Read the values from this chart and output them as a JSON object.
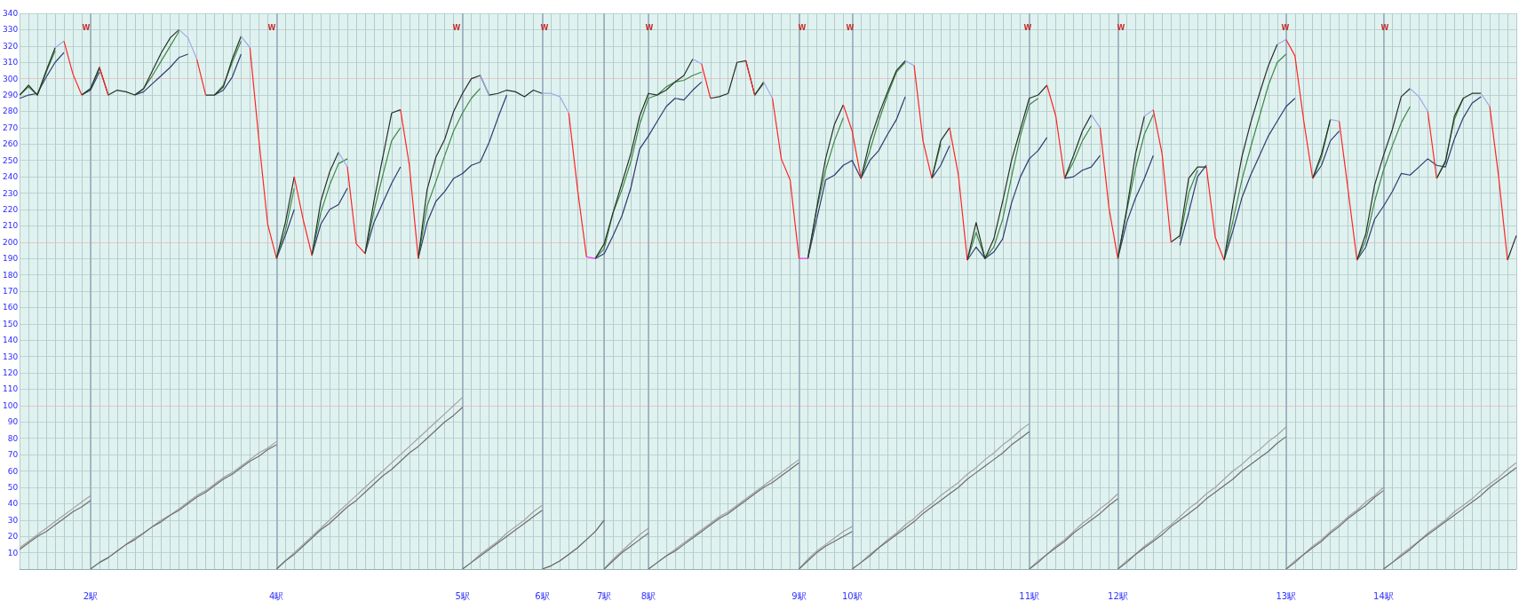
{
  "chart_data": {
    "type": "line",
    "marker": "none",
    "grid": true,
    "ylim": [
      0,
      340
    ],
    "yticks": [
      {
        "value": 0,
        "label": null
      },
      10,
      20,
      30,
      40,
      50,
      60,
      70,
      80,
      90,
      100,
      110,
      120,
      130,
      140,
      150,
      160,
      170,
      180,
      190,
      200,
      210,
      220,
      230,
      240,
      250,
      260,
      270,
      280,
      290,
      300,
      310,
      320,
      330,
      340
    ],
    "categories": [
      null,
      null,
      null,
      null,
      null,
      null,
      null,
      null,
      "2駅",
      null,
      null,
      null,
      null,
      null,
      null,
      null,
      null,
      null,
      null,
      null,
      null,
      null,
      null,
      null,
      null,
      null,
      null,
      null,
      null,
      "4駅",
      null,
      null,
      null,
      null,
      null,
      null,
      null,
      null,
      null,
      null,
      null,
      null,
      null,
      null,
      null,
      null,
      null,
      null,
      null,
      null,
      "5駅",
      null,
      null,
      null,
      null,
      null,
      null,
      null,
      null,
      "6駅",
      null,
      null,
      null,
      null,
      null,
      null,
      "7駅",
      null,
      null,
      null,
      null,
      "8駅",
      null,
      null,
      null,
      null,
      null,
      null,
      null,
      null,
      null,
      null,
      null,
      null,
      null,
      null,
      null,
      null,
      "9駅",
      null,
      null,
      null,
      null,
      null,
      "10駅",
      null,
      null,
      null,
      null,
      null,
      null,
      null,
      null,
      null,
      null,
      null,
      null,
      null,
      null,
      null,
      null,
      null,
      null,
      null,
      "11駅",
      null,
      null,
      null,
      null,
      null,
      null,
      null,
      null,
      null,
      "12駅",
      null,
      null,
      null,
      null,
      null,
      null,
      null,
      null,
      null,
      null,
      null,
      null,
      null,
      null,
      null,
      null,
      null,
      null,
      "13駅",
      null,
      null,
      null,
      null,
      null,
      null,
      null,
      null,
      null,
      null,
      "14駅",
      null,
      null,
      null,
      null,
      null,
      null,
      null,
      null,
      null,
      null,
      null,
      null,
      null,
      null,
      null
    ],
    "series": [
      {
        "color": "#a2a2a2",
        "values": [
          13,
          17,
          21,
          25,
          29,
          33,
          37,
          41,
          45,
          null,
          null,
          null,
          null,
          null,
          null,
          null,
          null,
          null,
          null,
          null,
          null,
          null,
          null,
          null,
          null,
          null,
          null,
          null,
          null,
          0,
          5,
          10,
          15,
          20,
          25,
          30,
          35,
          40,
          45,
          50,
          55,
          60,
          65,
          70,
          75,
          80,
          85,
          90,
          95,
          100,
          105,
          null,
          null,
          null,
          null,
          null,
          null,
          null,
          null,
          0,
          2,
          5,
          9,
          13,
          18,
          23,
          30,
          null,
          null,
          null,
          null,
          0,
          4,
          8,
          12,
          16,
          20,
          24,
          28,
          32,
          35,
          39,
          43,
          47,
          51,
          55,
          59,
          63,
          67,
          null,
          null,
          null,
          null,
          null,
          0,
          4,
          9,
          13,
          18,
          22,
          27,
          31,
          36,
          40,
          45,
          49,
          53,
          58,
          62,
          67,
          71,
          76,
          80,
          85,
          89,
          null,
          null,
          null,
          null,
          null,
          null,
          null,
          null,
          null,
          0,
          5,
          9,
          14,
          18,
          23,
          27,
          32,
          37,
          41,
          46,
          50,
          55,
          60,
          64,
          69,
          73,
          78,
          82,
          87,
          null,
          null,
          null,
          null,
          null,
          null,
          null,
          null,
          null,
          null,
          0,
          4,
          9,
          13,
          17,
          22,
          26,
          30,
          35,
          39,
          43,
          48,
          52,
          56,
          61,
          65
        ]
      },
      {
        "color": "#a2a2a2",
        "values": [
          null,
          null,
          null,
          null,
          null,
          null,
          null,
          null,
          0,
          4,
          7,
          11,
          15,
          19,
          22,
          26,
          30,
          33,
          37,
          41,
          45,
          48,
          52,
          56,
          59,
          63,
          67,
          71,
          74,
          78,
          null,
          null,
          null,
          null,
          null,
          null,
          null,
          null,
          null,
          null,
          null,
          null,
          null,
          null,
          null,
          null,
          null,
          null,
          null,
          null,
          0,
          4,
          9,
          13,
          17,
          22,
          26,
          30,
          35,
          39,
          null,
          null,
          null,
          null,
          null,
          null,
          0,
          6,
          11,
          16,
          21,
          25,
          null,
          null,
          null,
          null,
          null,
          null,
          null,
          null,
          null,
          null,
          null,
          null,
          null,
          null,
          null,
          null,
          0,
          6,
          11,
          15,
          19,
          23,
          26,
          null,
          null,
          null,
          null,
          null,
          null,
          null,
          null,
          null,
          null,
          null,
          null,
          null,
          null,
          null,
          null,
          null,
          null,
          null,
          0,
          5,
          9,
          14,
          18,
          23,
          28,
          32,
          37,
          41,
          46,
          null,
          null,
          null,
          null,
          null,
          null,
          null,
          null,
          null,
          null,
          null,
          null,
          null,
          null,
          null,
          null,
          null,
          null,
          0,
          5,
          9,
          14,
          18,
          23,
          27,
          32,
          36,
          41,
          45,
          50,
          null,
          null,
          null,
          null,
          null,
          null,
          null,
          null,
          null,
          null,
          null,
          null,
          null,
          null,
          null
        ]
      },
      {
        "color": "#6e6e6e",
        "values": [
          12,
          16,
          20,
          23,
          27,
          31,
          35,
          38,
          42,
          null,
          null,
          null,
          null,
          null,
          null,
          null,
          null,
          null,
          null,
          null,
          null,
          null,
          null,
          null,
          null,
          null,
          null,
          null,
          null,
          0,
          5,
          9,
          14,
          19,
          24,
          28,
          33,
          38,
          42,
          47,
          52,
          57,
          61,
          66,
          71,
          75,
          80,
          85,
          90,
          94,
          99,
          null,
          null,
          null,
          null,
          null,
          null,
          null,
          null,
          0,
          2,
          5,
          9,
          13,
          18,
          23,
          30,
          null,
          null,
          null,
          null,
          0,
          4,
          8,
          11,
          15,
          19,
          23,
          27,
          31,
          34,
          38,
          42,
          46,
          50,
          53,
          57,
          61,
          65,
          null,
          null,
          null,
          null,
          null,
          0,
          4,
          8,
          13,
          17,
          21,
          25,
          29,
          34,
          38,
          42,
          46,
          50,
          55,
          59,
          63,
          67,
          71,
          76,
          80,
          84,
          null,
          null,
          null,
          null,
          null,
          null,
          null,
          null,
          null,
          0,
          4,
          9,
          13,
          17,
          21,
          26,
          30,
          34,
          38,
          43,
          47,
          51,
          55,
          60,
          64,
          68,
          72,
          77,
          81,
          null,
          null,
          null,
          null,
          null,
          null,
          null,
          null,
          null,
          null,
          0,
          4,
          8,
          12,
          17,
          21,
          25,
          29,
          33,
          37,
          41,
          45,
          50,
          54,
          58,
          62
        ]
      },
      {
        "color": "#6e6e6e",
        "values": [
          null,
          null,
          null,
          null,
          null,
          null,
          null,
          null,
          0,
          4,
          7,
          11,
          15,
          18,
          22,
          26,
          29,
          33,
          36,
          40,
          44,
          47,
          51,
          55,
          58,
          62,
          66,
          69,
          73,
          76,
          null,
          null,
          null,
          null,
          null,
          null,
          null,
          null,
          null,
          null,
          null,
          null,
          null,
          null,
          null,
          null,
          null,
          null,
          null,
          null,
          0,
          4,
          8,
          12,
          16,
          20,
          24,
          28,
          32,
          36,
          null,
          null,
          null,
          null,
          null,
          null,
          0,
          5,
          10,
          14,
          18,
          22,
          null,
          null,
          null,
          null,
          null,
          null,
          null,
          null,
          null,
          null,
          null,
          null,
          null,
          null,
          null,
          null,
          0,
          5,
          10,
          14,
          17,
          20,
          23,
          null,
          null,
          null,
          null,
          null,
          null,
          null,
          null,
          null,
          null,
          null,
          null,
          null,
          null,
          null,
          null,
          null,
          null,
          null,
          0,
          4,
          9,
          13,
          17,
          22,
          26,
          30,
          34,
          39,
          43,
          null,
          null,
          null,
          null,
          null,
          null,
          null,
          null,
          null,
          null,
          null,
          null,
          null,
          null,
          null,
          null,
          null,
          null,
          0,
          4,
          9,
          13,
          17,
          22,
          26,
          31,
          35,
          39,
          44,
          48,
          null,
          null,
          null,
          null,
          null,
          null,
          null,
          null,
          null,
          null,
          null,
          null,
          null,
          null,
          null
        ]
      },
      {
        "color": "#2f3a72",
        "values": [
          288,
          290,
          291,
          301,
          310,
          316,
          null,
          290,
          293,
          304,
          null,
          null,
          null,
          290,
          292,
          297,
          302,
          307,
          313,
          315,
          null,
          null,
          290,
          293,
          301,
          315,
          null,
          null,
          null,
          190,
          204,
          220,
          null,
          192,
          211,
          220,
          223,
          233,
          null,
          193,
          212,
          224,
          236,
          246,
          null,
          190,
          212,
          225,
          231,
          239,
          242,
          247,
          249,
          261,
          276,
          290,
          null,
          null,
          null,
          null,
          null,
          null,
          null,
          null,
          null,
          190,
          193,
          204,
          216,
          233,
          257,
          265,
          274,
          283,
          288,
          287,
          293,
          298,
          null,
          null,
          null,
          null,
          null,
          null,
          null,
          null,
          null,
          null,
          null,
          190,
          214,
          238,
          241,
          247,
          250,
          239,
          250,
          256,
          266,
          275,
          289,
          null,
          null,
          239,
          247,
          259,
          null,
          189,
          197,
          190,
          194,
          202,
          224,
          240,
          251,
          256,
          264,
          null,
          239,
          240,
          244,
          246,
          253,
          null,
          190,
          212,
          227,
          239,
          253,
          null,
          null,
          198,
          218,
          240,
          247,
          null,
          189,
          207,
          227,
          241,
          253,
          265,
          274,
          283,
          288,
          null,
          239,
          247,
          262,
          268,
          null,
          189,
          197,
          214,
          222,
          231,
          242,
          241,
          246,
          251,
          247,
          246,
          263,
          276,
          285,
          289,
          null,
          null,
          null,
          null
        ]
      },
      {
        "color": "#3d8a45",
        "values": [
          290,
          295,
          290,
          304,
          317,
          null,
          null,
          290,
          294,
          306,
          null,
          null,
          null,
          290,
          294,
          302,
          311,
          320,
          329,
          null,
          null,
          null,
          290,
          296,
          310,
          323,
          null,
          null,
          null,
          190,
          207,
          233,
          null,
          192,
          218,
          235,
          248,
          251,
          null,
          193,
          219,
          241,
          262,
          270,
          null,
          190,
          222,
          237,
          253,
          268,
          279,
          288,
          294,
          null,
          null,
          null,
          null,
          null,
          null,
          null,
          null,
          null,
          null,
          null,
          null,
          190,
          196,
          218,
          232,
          249,
          272,
          288,
          290,
          295,
          298,
          299,
          302,
          304,
          null,
          null,
          null,
          null,
          null,
          290,
          297,
          null,
          null,
          null,
          null,
          190,
          220,
          244,
          262,
          276,
          null,
          239,
          256,
          274,
          290,
          304,
          310,
          null,
          null,
          239,
          260,
          null,
          null,
          189,
          206,
          190,
          197,
          214,
          240,
          265,
          284,
          288,
          null,
          null,
          239,
          249,
          262,
          271,
          null,
          null,
          190,
          219,
          245,
          266,
          278,
          null,
          null,
          202,
          230,
          244,
          null,
          null,
          189,
          213,
          238,
          258,
          277,
          296,
          310,
          315,
          null,
          null,
          239,
          252,
          275,
          null,
          null,
          189,
          201,
          225,
          244,
          259,
          273,
          283,
          null,
          null,
          239,
          250,
          275,
          288,
          null,
          null,
          null,
          null,
          null,
          null
        ]
      },
      {
        "color": "#283028",
        "values": [
          290,
          296,
          290,
          305,
          319,
          null,
          null,
          290,
          294,
          307,
          290,
          293,
          292,
          290,
          294,
          305,
          316,
          325,
          330,
          null,
          null,
          290,
          290,
          295,
          312,
          326,
          null,
          null,
          null,
          190,
          212,
          240,
          null,
          192,
          225,
          243,
          255,
          null,
          null,
          193,
          225,
          252,
          279,
          281,
          null,
          190,
          232,
          252,
          263,
          280,
          291,
          300,
          302,
          290,
          291,
          293,
          292,
          289,
          293,
          291,
          null,
          null,
          null,
          null,
          null,
          190,
          199,
          218,
          236,
          254,
          277,
          291,
          290,
          293,
          298,
          302,
          312,
          null,
          288,
          289,
          291,
          310,
          311,
          290,
          298,
          null,
          null,
          null,
          null,
          190,
          221,
          251,
          272,
          284,
          null,
          239,
          262,
          278,
          292,
          305,
          311,
          null,
          null,
          239,
          262,
          270,
          null,
          189,
          212,
          190,
          202,
          225,
          250,
          269,
          288,
          290,
          296,
          null,
          239,
          253,
          268,
          278,
          null,
          null,
          190,
          220,
          254,
          277,
          null,
          null,
          200,
          204,
          239,
          246,
          246,
          null,
          189,
          223,
          252,
          273,
          291,
          308,
          321,
          null,
          null,
          null,
          239,
          254,
          275,
          null,
          null,
          189,
          205,
          235,
          253,
          269,
          289,
          294,
          null,
          null,
          239,
          249,
          277,
          288,
          291,
          291,
          null,
          null,
          189,
          204
        ]
      },
      {
        "color": "#9ea8ec",
        "values": [
          null,
          null,
          null,
          null,
          319,
          323,
          null,
          null,
          null,
          null,
          null,
          null,
          null,
          null,
          null,
          null,
          null,
          null,
          330,
          325,
          312,
          null,
          null,
          null,
          null,
          326,
          319,
          null,
          null,
          null,
          null,
          null,
          null,
          null,
          null,
          null,
          255,
          246,
          null,
          null,
          null,
          null,
          null,
          null,
          null,
          null,
          null,
          null,
          null,
          null,
          null,
          null,
          302,
          290,
          null,
          null,
          null,
          null,
          null,
          291,
          291,
          289,
          279,
          null,
          null,
          null,
          null,
          null,
          null,
          null,
          null,
          null,
          null,
          null,
          null,
          null,
          312,
          309,
          null,
          null,
          null,
          null,
          null,
          null,
          298,
          288,
          null,
          null,
          null,
          null,
          null,
          null,
          null,
          null,
          null,
          null,
          null,
          null,
          null,
          null,
          311,
          308,
          null,
          null,
          null,
          null,
          null,
          null,
          null,
          null,
          null,
          null,
          null,
          null,
          null,
          null,
          null,
          null,
          null,
          null,
          null,
          278,
          270,
          null,
          null,
          null,
          null,
          277,
          281,
          null,
          null,
          null,
          null,
          null,
          null,
          null,
          null,
          null,
          null,
          null,
          null,
          null,
          321,
          324,
          null,
          null,
          null,
          null,
          275,
          274,
          null,
          null,
          null,
          null,
          null,
          null,
          null,
          294,
          289,
          280,
          null,
          null,
          null,
          null,
          null,
          291,
          283,
          null,
          null,
          null
        ]
      },
      {
        "color": "#ff30ff",
        "values": [
          null,
          null,
          null,
          null,
          null,
          null,
          null,
          null,
          null,
          null,
          null,
          null,
          null,
          null,
          null,
          null,
          null,
          null,
          null,
          null,
          null,
          null,
          null,
          null,
          null,
          null,
          null,
          null,
          null,
          null,
          null,
          null,
          null,
          null,
          null,
          null,
          null,
          null,
          null,
          null,
          null,
          null,
          null,
          null,
          null,
          null,
          null,
          null,
          null,
          null,
          null,
          null,
          null,
          null,
          null,
          null,
          null,
          null,
          null,
          null,
          null,
          null,
          null,
          null,
          191,
          190,
          null,
          null,
          null,
          null,
          null,
          null,
          null,
          null,
          null,
          null,
          null,
          null,
          null,
          null,
          null,
          null,
          null,
          null,
          null,
          null,
          null,
          null,
          190,
          190,
          null,
          null,
          null,
          null,
          null,
          null,
          null,
          null,
          null,
          null,
          null,
          null,
          null,
          null,
          null,
          null,
          null,
          null,
          null,
          null,
          null,
          null,
          null,
          null,
          null,
          null,
          null,
          null,
          null,
          null,
          null,
          null,
          null,
          null,
          null,
          null,
          null,
          null,
          null,
          null,
          null,
          null,
          null,
          null,
          null,
          null,
          null,
          null,
          null,
          null,
          null,
          null,
          null,
          null,
          null,
          null,
          null,
          null,
          null,
          null,
          null,
          null,
          null,
          null,
          null,
          null,
          null,
          null,
          null,
          null,
          null,
          null,
          null,
          null,
          null,
          null,
          null,
          null,
          null,
          null
        ]
      },
      {
        "color": "#ff2424",
        "values": [
          null,
          null,
          null,
          null,
          null,
          323,
          303,
          290,
          null,
          307,
          290,
          null,
          null,
          null,
          null,
          null,
          null,
          null,
          null,
          null,
          312,
          290,
          null,
          null,
          null,
          null,
          319,
          263,
          211,
          190,
          null,
          240,
          214,
          192,
          null,
          null,
          null,
          246,
          199,
          193,
          null,
          null,
          null,
          281,
          247,
          190,
          null,
          null,
          null,
          null,
          null,
          null,
          null,
          null,
          null,
          null,
          null,
          null,
          null,
          null,
          null,
          null,
          279,
          232,
          191,
          null,
          null,
          null,
          null,
          null,
          null,
          null,
          null,
          null,
          null,
          null,
          null,
          309,
          288,
          null,
          null,
          null,
          311,
          290,
          null,
          288,
          251,
          238,
          190,
          null,
          null,
          null,
          null,
          284,
          268,
          239,
          null,
          null,
          null,
          null,
          null,
          308,
          262,
          239,
          null,
          270,
          241,
          189,
          null,
          null,
          null,
          null,
          null,
          null,
          null,
          null,
          296,
          277,
          239,
          null,
          null,
          null,
          270,
          221,
          190,
          null,
          null,
          null,
          281,
          254,
          200,
          null,
          null,
          null,
          246,
          203,
          189,
          null,
          null,
          null,
          null,
          null,
          null,
          324,
          314,
          274,
          239,
          null,
          null,
          274,
          232,
          189,
          null,
          null,
          null,
          null,
          null,
          null,
          null,
          280,
          239,
          null,
          null,
          null,
          null,
          null,
          283,
          240,
          189,
          null
        ]
      }
    ],
    "annotations": [
      "W",
      "W",
      "W",
      "W",
      "W",
      "W",
      "W",
      "W",
      "W",
      "W",
      "W"
    ]
  }
}
